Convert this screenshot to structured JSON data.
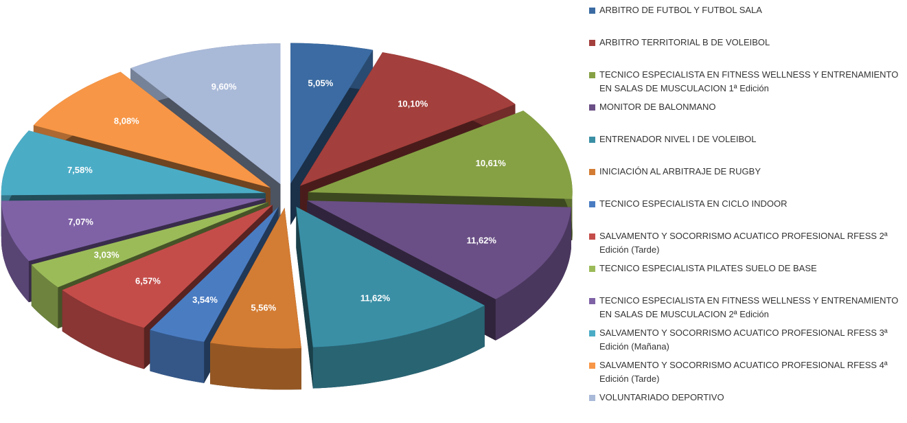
{
  "chart_data": {
    "type": "pie",
    "categories": [
      "ARBITRO DE FUTBOL Y FUTBOL SALA",
      "ARBITRO TERRITORIAL B DE VOLEIBOL",
      "TECNICO ESPECIALISTA EN FITNESS WELLNESS Y ENTRENAMIENTO EN SALAS DE MUSCULACION 1ª Edición",
      "MONITOR DE BALONMANO",
      "ENTRENADOR NIVEL I DE VOLEIBOL",
      "INICIACIÓN AL ARBITRAJE DE RUGBY",
      "TECNICO ESPECIALISTA EN CICLO INDOOR",
      "SALVAMENTO Y SOCORRISMO ACUATICO PROFESIONAL RFESS 2ª Edición (Tarde)",
      "TECNICO ESPECIALISTA PILATES SUELO DE BASE",
      "TECNICO ESPECIALISTA EN FITNESS WELLNESS Y ENTRENAMIENTO EN SALAS DE MUSCULACION 2ª Edición",
      "SALVAMENTO Y SOCORRISMO ACUATICO PROFESIONAL RFESS 3ª Edición (Mañana)",
      "SALVAMENTO Y SOCORRISMO ACUATICO PROFESIONAL RFESS 4ª Edición (Tarde)",
      "VOLUNTARIADO DEPORTIVO"
    ],
    "values": [
      5.05,
      10.1,
      10.61,
      11.62,
      11.62,
      5.56,
      3.54,
      6.57,
      3.03,
      7.07,
      7.58,
      8.08,
      9.6
    ],
    "value_labels": [
      "5,05%",
      "10,10%",
      "10,61%",
      "11,62%",
      "11,62%",
      "5,56%",
      "3,54%",
      "6,57%",
      "3,03%",
      "7,07%",
      "7,58%",
      "8,08%",
      "9,60%"
    ],
    "colors": [
      "#3b6ba2",
      "#a33f3c",
      "#86a144",
      "#6a4f86",
      "#3a8fa5",
      "#d37c33",
      "#4a7cc2",
      "#c44d4a",
      "#9bbb59",
      "#7f62a6",
      "#4bacc6",
      "#f79646",
      "#a9b9d8"
    ],
    "legend": "right"
  }
}
